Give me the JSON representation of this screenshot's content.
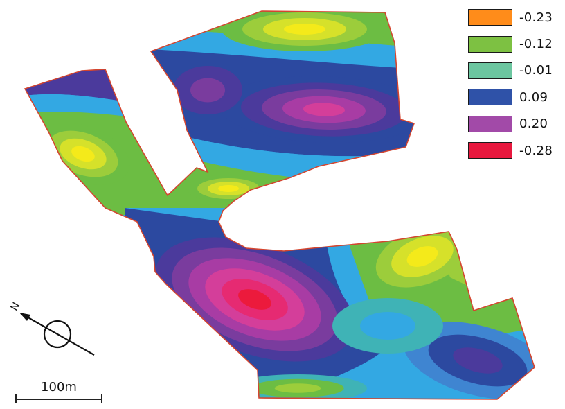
{
  "legend": {
    "items": [
      {
        "label": "-0.23",
        "color": "#ff8c1a"
      },
      {
        "label": "-0.12",
        "color": "#7dc142"
      },
      {
        "label": "-0.01",
        "color": "#6cc6a0"
      },
      {
        "label": "0.09",
        "color": "#2f52a8"
      },
      {
        "label": "0.20",
        "color": "#a24aa8"
      },
      {
        "label": "-0.28",
        "color": "#e8183e"
      }
    ]
  },
  "scale_bar": {
    "label": "100m"
  },
  "north_arrow": {
    "label": "N",
    "icon": "north-arrow-icon"
  },
  "colors": {
    "boundary": "#d4452f",
    "band_palette": [
      "#f4ea1a",
      "#d6e12a",
      "#9ccd3b",
      "#6cbd43",
      "#3fb3b6",
      "#33a8e3",
      "#3f85d1",
      "#2c49a0",
      "#4b3a9c",
      "#7a3c9e",
      "#a83ca4",
      "#d43e9a",
      "#e62a72",
      "#ec1a3c"
    ]
  }
}
